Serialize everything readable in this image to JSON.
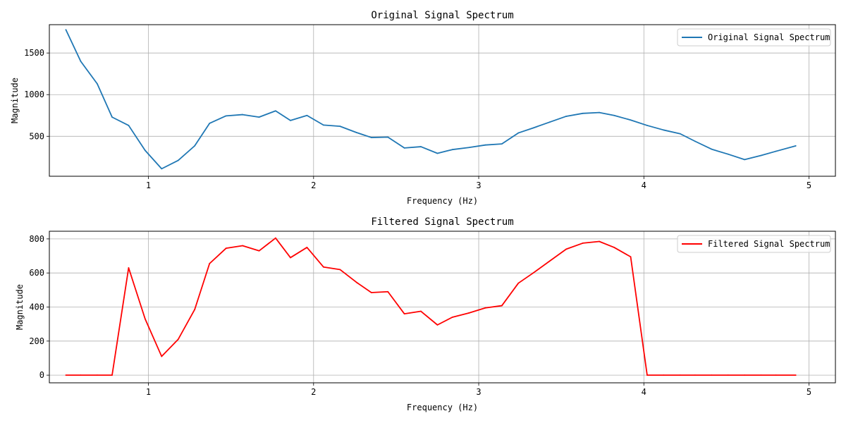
{
  "chart_data": [
    {
      "type": "line",
      "title": "Original Signal Spectrum",
      "xlabel": "Frequency (Hz)",
      "ylabel": "Magnitude",
      "xlim": [
        0.4,
        5.16
      ],
      "ylim": [
        20,
        1840
      ],
      "xticks": [
        1,
        2,
        3,
        4,
        5
      ],
      "yticks": [
        500,
        1000,
        1500
      ],
      "grid": true,
      "legend": "top-right",
      "series": [
        {
          "name": "Original Signal Spectrum",
          "color": "#1f77b4",
          "x": [
            0.5,
            0.59,
            0.69,
            0.78,
            0.88,
            0.98,
            1.08,
            1.18,
            1.28,
            1.37,
            1.47,
            1.57,
            1.67,
            1.77,
            1.86,
            1.96,
            2.06,
            2.16,
            2.26,
            2.35,
            2.45,
            2.55,
            2.65,
            2.75,
            2.84,
            2.94,
            3.04,
            3.14,
            3.24,
            3.33,
            3.43,
            3.53,
            3.63,
            3.73,
            3.82,
            3.92,
            4.02,
            4.12,
            4.22,
            4.31,
            4.41,
            4.51,
            4.61,
            4.71,
            4.8,
            4.92
          ],
          "values": [
            1780,
            1400,
            1130,
            730,
            630,
            330,
            110,
            210,
            385,
            655,
            745,
            760,
            730,
            805,
            690,
            750,
            635,
            620,
            545,
            485,
            490,
            360,
            375,
            295,
            340,
            365,
            395,
            408,
            540,
            600,
            670,
            740,
            775,
            785,
            750,
            695,
            630,
            575,
            530,
            440,
            345,
            285,
            220,
            270,
            320,
            385
          ]
        }
      ]
    },
    {
      "type": "line",
      "title": "Filtered Signal Spectrum",
      "xlabel": "Frequency (Hz)",
      "ylabel": "Magnitude",
      "xlim": [
        0.4,
        5.16
      ],
      "ylim": [
        -45,
        845
      ],
      "xticks": [
        1,
        2,
        3,
        4,
        5
      ],
      "yticks": [
        0,
        200,
        400,
        600,
        800
      ],
      "grid": true,
      "legend": "top-right",
      "series": [
        {
          "name": "Filtered Signal Spectrum",
          "color": "#ff0000",
          "x": [
            0.5,
            0.59,
            0.69,
            0.78,
            0.88,
            0.98,
            1.08,
            1.18,
            1.28,
            1.37,
            1.47,
            1.57,
            1.67,
            1.77,
            1.86,
            1.96,
            2.06,
            2.16,
            2.26,
            2.35,
            2.45,
            2.55,
            2.65,
            2.75,
            2.84,
            2.94,
            3.04,
            3.14,
            3.24,
            3.33,
            3.43,
            3.53,
            3.63,
            3.73,
            3.82,
            3.92,
            4.02,
            4.12,
            4.22,
            4.31,
            4.41,
            4.51,
            4.61,
            4.71,
            4.8,
            4.92
          ],
          "values": [
            0,
            0,
            0,
            0,
            630,
            330,
            110,
            210,
            385,
            655,
            745,
            760,
            730,
            805,
            690,
            750,
            635,
            620,
            545,
            485,
            490,
            360,
            375,
            295,
            340,
            365,
            395,
            408,
            540,
            600,
            670,
            740,
            775,
            785,
            750,
            695,
            0,
            0,
            0,
            0,
            0,
            0,
            0,
            0,
            0,
            0
          ]
        }
      ]
    }
  ]
}
